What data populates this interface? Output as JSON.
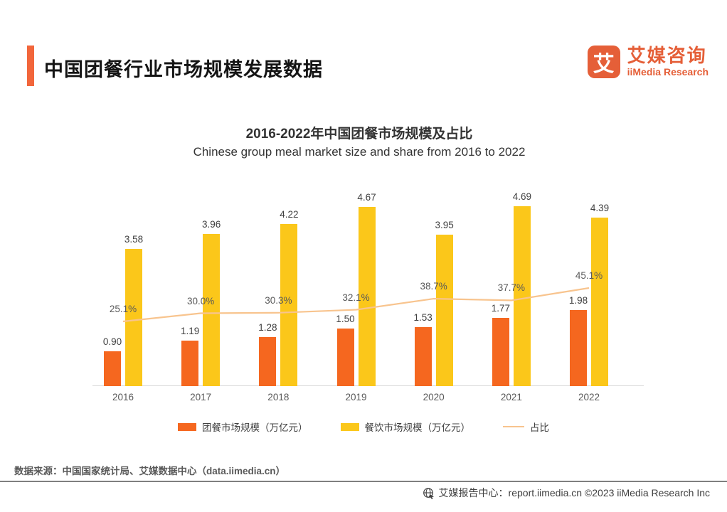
{
  "header": {
    "title": "中国团餐行业市场规模发展数据",
    "logo": {
      "glyph": "艾",
      "name_cn": "艾媒咨询",
      "name_en": "iiMedia Research"
    }
  },
  "chart": {
    "title_cn": "2016-2022年中国团餐市场规模及占比",
    "title_en": "Chinese group meal market size and share from 2016 to 2022"
  },
  "chart_data": {
    "type": "bar",
    "title": "2016-2022年中国团餐市场规模及占比",
    "subtitle": "Chinese group meal market size and share from 2016 to 2022",
    "categories": [
      "2016",
      "2017",
      "2018",
      "2019",
      "2020",
      "2021",
      "2022"
    ],
    "series": [
      {
        "name": "团餐市场规模（万亿元）",
        "type": "bar",
        "color": "#f5671f",
        "values": [
          0.9,
          1.19,
          1.28,
          1.5,
          1.53,
          1.77,
          1.98
        ],
        "labels": [
          "0.90",
          "1.19",
          "1.28",
          "1.50",
          "1.53",
          "1.77",
          "1.98"
        ]
      },
      {
        "name": "餐饮市场规模（万亿元）",
        "type": "bar",
        "color": "#fbc71a",
        "values": [
          3.58,
          3.96,
          4.22,
          4.67,
          3.95,
          4.69,
          4.39
        ],
        "labels": [
          "3.58",
          "3.96",
          "4.22",
          "4.67",
          "3.95",
          "4.69",
          "4.39"
        ]
      },
      {
        "name": "占比",
        "type": "line",
        "color": "#f8c48e",
        "values": [
          25.1,
          30.0,
          30.3,
          32.1,
          38.7,
          37.7,
          45.1
        ],
        "labels": [
          "25.1%",
          "30.0%",
          "30.3%",
          "32.1%",
          "38.7%",
          "37.7%",
          "45.1%"
        ]
      }
    ],
    "xlabel": "",
    "ylabel": "",
    "value_axis_visible": false,
    "grid": false,
    "legend_position": "bottom"
  },
  "source": "数据来源：中国国家统计局、艾媒数据中心（data.iimedia.cn）",
  "footer": {
    "text": "艾媒报告中心：report.iimedia.cn  ©2023  iiMedia Research Inc"
  }
}
